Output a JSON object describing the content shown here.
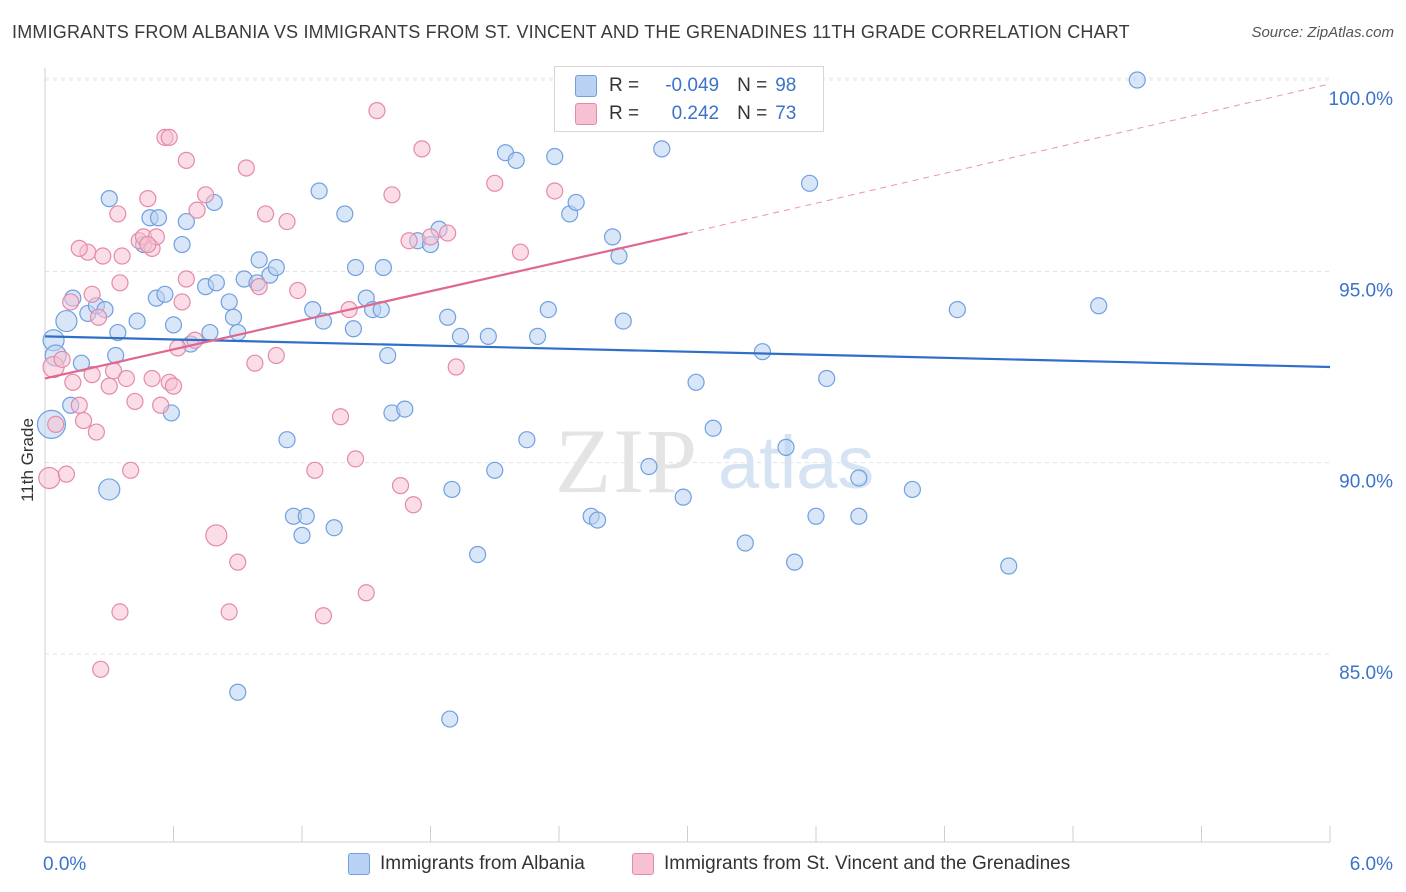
{
  "title": "IMMIGRANTS FROM ALBANIA VS IMMIGRANTS FROM ST. VINCENT AND THE GRENADINES 11TH GRADE CORRELATION CHART",
  "source": "Source: ZipAtlas.com",
  "watermark": {
    "zip": "ZIP",
    "atlas": "atlas"
  },
  "legend": {
    "rows": [
      {
        "r_label": "R =",
        "r_value": "-0.049",
        "n_label": "N =",
        "n_value": "98",
        "color": "#6fa0e0",
        "fill": "#b9d1f3"
      },
      {
        "r_label": "R =",
        "r_value": "0.242",
        "n_label": "N =",
        "n_value": "73",
        "color": "#e58aa9",
        "fill": "#f6c1d2"
      }
    ]
  },
  "bottom_legend": {
    "albania": "Immigrants from Albania",
    "stvincent": "Immigrants from St. Vincent and the Grenadines"
  },
  "chart_data": {
    "type": "scatter",
    "title": "IMMIGRANTS FROM ALBANIA VS IMMIGRANTS FROM ST. VINCENT AND THE GRENADINES 11TH GRADE CORRELATION CHART",
    "xlabel": "",
    "ylabel": "11th Grade",
    "xlim": [
      0,
      6
    ],
    "ylim": [
      80.0,
      100.8
    ],
    "x_tick_labels": [
      "0.0%",
      "6.0%"
    ],
    "y_ticks": [
      85,
      90,
      95,
      100
    ],
    "y_tick_labels": [
      "85.0%",
      "90.0%",
      "95.0%",
      "100.0%"
    ],
    "grid": true,
    "legend_position": "top-center",
    "colors": {
      "albania_stroke": "#6fa0e0",
      "albania_fill": "#b9d1f3",
      "albania_line": "#2f6fc7",
      "stv_stroke": "#e58aa9",
      "stv_fill": "#f6c1d2",
      "stv_line": "#e0678f"
    },
    "series": [
      {
        "name": "Immigrants from Albania",
        "trend": {
          "x0": 0.0,
          "y0": 93.3,
          "x1": 6.0,
          "y1": 92.5
        },
        "points": [
          [
            0.04,
            93.2,
            1
          ],
          [
            0.05,
            92.8,
            1
          ],
          [
            0.1,
            93.7,
            1
          ],
          [
            0.13,
            94.3,
            0
          ],
          [
            0.17,
            92.6,
            0
          ],
          [
            0.12,
            91.5,
            0
          ],
          [
            0.03,
            91.0,
            2
          ],
          [
            0.2,
            93.9,
            0
          ],
          [
            0.24,
            94.1,
            0
          ],
          [
            0.28,
            94.0,
            0
          ],
          [
            0.3,
            96.9,
            0
          ],
          [
            0.33,
            92.8,
            0
          ],
          [
            0.34,
            93.4,
            0
          ],
          [
            0.3,
            89.3,
            1
          ],
          [
            0.43,
            93.7,
            0
          ],
          [
            0.46,
            95.7,
            0
          ],
          [
            0.49,
            96.4,
            0
          ],
          [
            0.52,
            94.3,
            0
          ],
          [
            0.53,
            96.4,
            0
          ],
          [
            0.56,
            94.4,
            0
          ],
          [
            0.59,
            91.3,
            0
          ],
          [
            0.6,
            93.6,
            0
          ],
          [
            0.64,
            95.7,
            0
          ],
          [
            0.66,
            96.3,
            0
          ],
          [
            0.68,
            93.1,
            0
          ],
          [
            0.75,
            94.6,
            0
          ],
          [
            0.77,
            93.4,
            0
          ],
          [
            0.79,
            96.8,
            0
          ],
          [
            0.8,
            94.7,
            0
          ],
          [
            0.86,
            94.2,
            0
          ],
          [
            0.88,
            93.8,
            0
          ],
          [
            0.9,
            93.4,
            0
          ],
          [
            0.93,
            94.8,
            0
          ],
          [
            0.99,
            94.7,
            0
          ],
          [
            1.0,
            95.3,
            0
          ],
          [
            1.05,
            94.9,
            0
          ],
          [
            1.08,
            95.1,
            0
          ],
          [
            1.13,
            90.6,
            0
          ],
          [
            1.16,
            88.6,
            0
          ],
          [
            1.2,
            88.1,
            0
          ],
          [
            1.22,
            88.6,
            0
          ],
          [
            1.25,
            94.0,
            0
          ],
          [
            1.28,
            97.1,
            0
          ],
          [
            1.3,
            93.7,
            0
          ],
          [
            1.35,
            88.3,
            0
          ],
          [
            1.4,
            96.5,
            0
          ],
          [
            1.44,
            93.5,
            0
          ],
          [
            1.45,
            95.1,
            0
          ],
          [
            1.5,
            94.3,
            0
          ],
          [
            1.53,
            94.0,
            0
          ],
          [
            1.57,
            94.0,
            0
          ],
          [
            1.58,
            95.1,
            0
          ],
          [
            1.6,
            92.8,
            0
          ],
          [
            1.62,
            91.3,
            0
          ],
          [
            1.68,
            91.4,
            0
          ],
          [
            1.74,
            95.8,
            0
          ],
          [
            1.8,
            95.7,
            0
          ],
          [
            1.84,
            96.1,
            0
          ],
          [
            1.88,
            93.8,
            0
          ],
          [
            1.9,
            89.3,
            0
          ],
          [
            1.94,
            93.3,
            0
          ],
          [
            2.02,
            87.6,
            0
          ],
          [
            2.07,
            93.3,
            0
          ],
          [
            2.1,
            89.8,
            0
          ],
          [
            2.15,
            98.1,
            0
          ],
          [
            2.2,
            97.9,
            0
          ],
          [
            2.25,
            90.6,
            0
          ],
          [
            2.3,
            93.3,
            0
          ],
          [
            2.35,
            94.0,
            0
          ],
          [
            2.38,
            98.0,
            0
          ],
          [
            2.45,
            96.5,
            0
          ],
          [
            2.48,
            96.8,
            0
          ],
          [
            2.55,
            88.6,
            0
          ],
          [
            2.58,
            88.5,
            0
          ],
          [
            2.65,
            95.9,
            0
          ],
          [
            2.68,
            95.4,
            0
          ],
          [
            2.7,
            93.7,
            0
          ],
          [
            2.82,
            89.9,
            0
          ],
          [
            2.88,
            98.2,
            0
          ],
          [
            2.98,
            89.1,
            0
          ],
          [
            3.04,
            92.1,
            0
          ],
          [
            3.12,
            90.9,
            0
          ],
          [
            3.27,
            87.9,
            0
          ],
          [
            3.35,
            92.9,
            0
          ],
          [
            3.46,
            90.4,
            0
          ],
          [
            3.5,
            87.4,
            0
          ],
          [
            3.57,
            97.3,
            0
          ],
          [
            3.6,
            88.6,
            0
          ],
          [
            3.65,
            92.2,
            0
          ],
          [
            3.8,
            89.6,
            0
          ],
          [
            3.8,
            88.6,
            0
          ],
          [
            4.05,
            89.3,
            0
          ],
          [
            4.26,
            94.0,
            0
          ],
          [
            4.5,
            87.3,
            0
          ],
          [
            4.92,
            94.1,
            0
          ],
          [
            0.9,
            84.0,
            0
          ],
          [
            1.89,
            83.3,
            0
          ],
          [
            5.1,
            100.0,
            0
          ]
        ]
      },
      {
        "name": "Immigrants from St. Vincent and the Grenadines",
        "trend": {
          "x0": 0.0,
          "y0": 92.2,
          "x1": 3.0,
          "y1": 96.0,
          "x_end": 6.0,
          "y_end": 99.9
        },
        "points": [
          [
            0.02,
            89.6,
            1
          ],
          [
            0.04,
            92.5,
            1
          ],
          [
            0.05,
            91.0,
            0
          ],
          [
            0.08,
            92.7,
            0
          ],
          [
            0.1,
            89.7,
            0
          ],
          [
            0.12,
            94.2,
            0
          ],
          [
            0.13,
            92.1,
            0
          ],
          [
            0.16,
            91.5,
            0
          ],
          [
            0.18,
            91.1,
            0
          ],
          [
            0.2,
            95.5,
            0
          ],
          [
            0.22,
            94.4,
            0
          ],
          [
            0.24,
            90.8,
            0
          ],
          [
            0.25,
            93.8,
            0
          ],
          [
            0.27,
            95.4,
            0
          ],
          [
            0.3,
            92.0,
            0
          ],
          [
            0.32,
            92.4,
            0
          ],
          [
            0.34,
            96.5,
            0
          ],
          [
            0.35,
            94.7,
            0
          ],
          [
            0.38,
            92.2,
            0
          ],
          [
            0.4,
            89.8,
            0
          ],
          [
            0.42,
            91.6,
            0
          ],
          [
            0.44,
            95.8,
            0
          ],
          [
            0.46,
            95.9,
            0
          ],
          [
            0.48,
            96.9,
            0
          ],
          [
            0.5,
            95.6,
            0
          ],
          [
            0.52,
            95.9,
            0
          ],
          [
            0.54,
            91.5,
            0
          ],
          [
            0.56,
            98.5,
            0
          ],
          [
            0.58,
            92.1,
            0
          ],
          [
            0.6,
            92.0,
            0
          ],
          [
            0.62,
            93.0,
            0
          ],
          [
            0.64,
            94.2,
            0
          ],
          [
            0.66,
            94.8,
            0
          ],
          [
            0.7,
            93.2,
            0
          ],
          [
            0.75,
            97.0,
            0
          ],
          [
            0.8,
            88.1,
            1
          ],
          [
            0.86,
            86.1,
            0
          ],
          [
            0.9,
            87.4,
            0
          ],
          [
            0.94,
            97.7,
            0
          ],
          [
            0.98,
            92.6,
            0
          ],
          [
            1.0,
            94.6,
            0
          ],
          [
            1.03,
            96.5,
            0
          ],
          [
            1.08,
            92.8,
            0
          ],
          [
            1.13,
            96.3,
            0
          ],
          [
            1.18,
            94.5,
            0
          ],
          [
            1.26,
            89.8,
            0
          ],
          [
            1.3,
            86.0,
            0
          ],
          [
            1.38,
            91.2,
            0
          ],
          [
            1.42,
            94.0,
            0
          ],
          [
            1.45,
            90.1,
            0
          ],
          [
            1.5,
            86.6,
            0
          ],
          [
            1.55,
            99.2,
            0
          ],
          [
            1.62,
            97.0,
            0
          ],
          [
            1.66,
            89.4,
            0
          ],
          [
            1.7,
            95.8,
            0
          ],
          [
            1.72,
            88.9,
            0
          ],
          [
            1.76,
            98.2,
            0
          ],
          [
            1.8,
            95.9,
            0
          ],
          [
            1.88,
            96.0,
            0
          ],
          [
            1.92,
            92.5,
            0
          ],
          [
            2.1,
            97.3,
            0
          ],
          [
            2.22,
            95.5,
            0
          ],
          [
            2.38,
            97.1,
            0
          ],
          [
            0.26,
            84.6,
            0
          ],
          [
            0.35,
            86.1,
            0
          ],
          [
            0.16,
            95.6,
            0
          ],
          [
            0.22,
            92.3,
            0
          ],
          [
            0.36,
            95.4,
            0
          ],
          [
            0.48,
            95.7,
            0
          ],
          [
            0.5,
            92.2,
            0
          ],
          [
            0.58,
            98.5,
            0
          ],
          [
            0.66,
            97.9,
            0
          ],
          [
            0.71,
            96.6,
            0
          ]
        ]
      }
    ]
  }
}
